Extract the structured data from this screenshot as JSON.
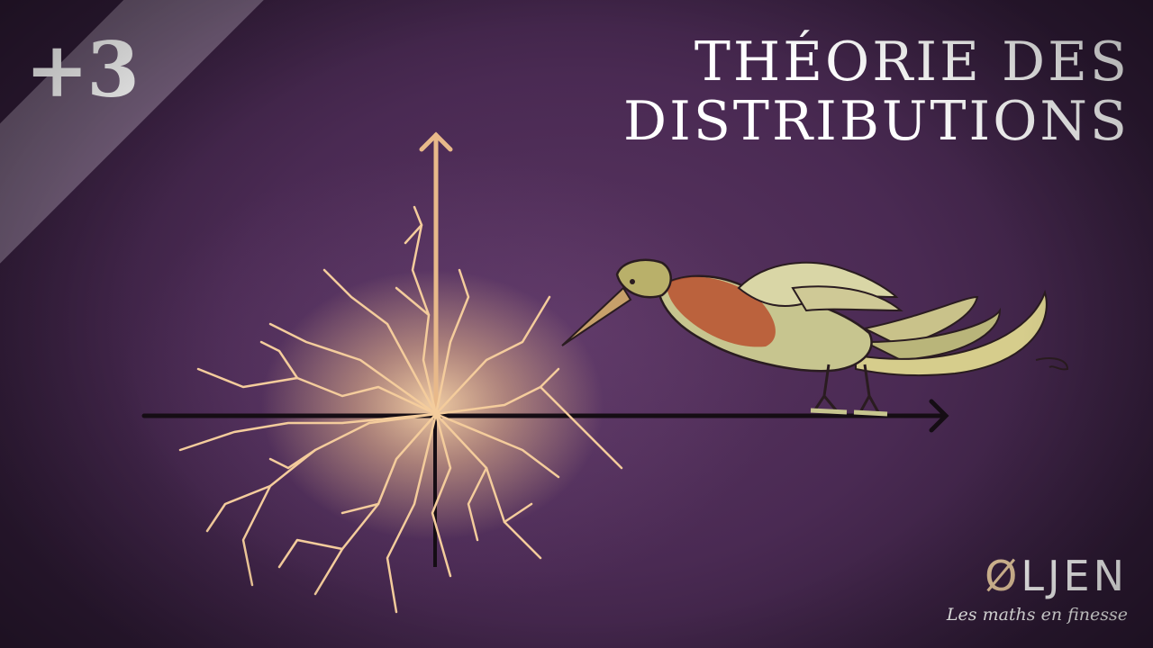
{
  "badge": "+3",
  "title": {
    "line1": "THÉORIE DES",
    "line2": "DISTRIBUTIONS"
  },
  "logo": {
    "mark": "Ø",
    "rest": "LJEN",
    "tagline": "Les maths en finesse"
  },
  "colors": {
    "background": "#4a2b52",
    "glow": "#f2c997",
    "axis_dark": "#150d14",
    "axis_light": "#e8b98a",
    "text": "#ffffff"
  },
  "icons": {
    "axes": "coordinate-axes",
    "lightning": "lightning-burst",
    "bird": "heron-bird"
  }
}
